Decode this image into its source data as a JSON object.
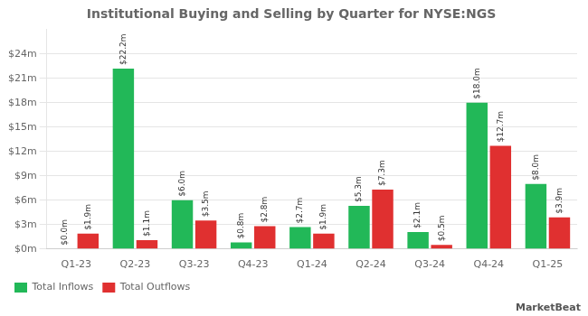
{
  "chart_data": {
    "type": "bar",
    "title": "Institutional Buying and Selling by Quarter for NYSE:NGS",
    "categories": [
      "Q1-23",
      "Q2-23",
      "Q3-23",
      "Q4-23",
      "Q1-24",
      "Q2-24",
      "Q3-24",
      "Q4-24",
      "Q1-25"
    ],
    "series": [
      {
        "name": "Total Inflows",
        "color": "#22b858",
        "values": [
          0.0,
          22.2,
          6.0,
          0.8,
          2.7,
          5.3,
          2.1,
          18.0,
          8.0
        ],
        "value_labels": [
          "$0.0m",
          "$22.2m",
          "$6.0m",
          "$0.8m",
          "$2.7m",
          "$5.3m",
          "$2.1m",
          "$18.0m",
          "$8.0m"
        ]
      },
      {
        "name": "Total Outflows",
        "color": "#e03030",
        "values": [
          1.9,
          1.1,
          3.5,
          2.8,
          1.9,
          7.3,
          0.5,
          12.7,
          3.9
        ],
        "value_labels": [
          "$1.9m",
          "$1.1m",
          "$3.5m",
          "$2.8m",
          "$1.9m",
          "$7.3m",
          "$0.5m",
          "$12.7m",
          "$3.9m"
        ]
      }
    ],
    "ylim": [
      0,
      27
    ],
    "yticks": [
      {
        "value": 0,
        "label": "$0m"
      },
      {
        "value": 3,
        "label": "$3m"
      },
      {
        "value": 6,
        "label": "$6m"
      },
      {
        "value": 9,
        "label": "$9m"
      },
      {
        "value": 12,
        "label": "$12m"
      },
      {
        "value": 15,
        "label": "$15m"
      },
      {
        "value": 18,
        "label": "$18m"
      },
      {
        "value": 21,
        "label": "$21m"
      },
      {
        "value": 24,
        "label": "$24m"
      }
    ],
    "grid": true,
    "legend": "bottom",
    "data_labels": true,
    "annotations": [
      "MarketBeat"
    ]
  }
}
